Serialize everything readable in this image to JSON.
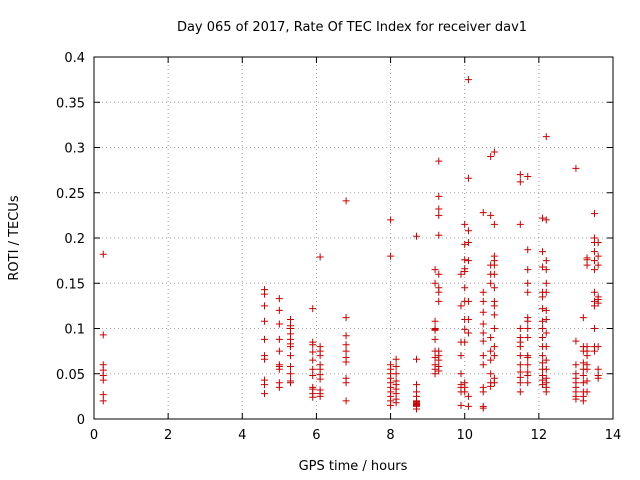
{
  "chart_data": {
    "type": "scatter",
    "title": "Day 065 of 2017, Rate Of TEC Index for receiver dav1",
    "xlabel": "GPS time / hours",
    "ylabel": "ROTI / TECUs",
    "xlim": [
      0,
      14
    ],
    "ylim": [
      0,
      0.4
    ],
    "xticks": [
      0,
      2,
      4,
      6,
      8,
      10,
      12,
      14
    ],
    "yticks": [
      0,
      0.05,
      0.1,
      0.15,
      0.2,
      0.25,
      0.3,
      0.35,
      0.4
    ],
    "xtick_labels": [
      "0",
      "2",
      "4",
      "6",
      "8",
      "10",
      "12",
      "14"
    ],
    "ytick_labels": [
      "0",
      "0.05",
      "0.1",
      "0.15",
      "0.2",
      "0.25",
      "0.3",
      "0.35",
      "0.4"
    ],
    "grid": true,
    "marker": "plus",
    "color": "#cc0000",
    "points": [
      [
        0.25,
        0.182
      ],
      [
        0.25,
        0.093
      ],
      [
        0.25,
        0.06
      ],
      [
        0.25,
        0.054
      ],
      [
        0.25,
        0.048
      ],
      [
        0.25,
        0.043
      ],
      [
        0.25,
        0.027
      ],
      [
        0.25,
        0.02
      ],
      [
        4.6,
        0.143
      ],
      [
        4.6,
        0.138
      ],
      [
        4.6,
        0.125
      ],
      [
        4.6,
        0.108
      ],
      [
        4.6,
        0.088
      ],
      [
        4.6,
        0.07
      ],
      [
        4.6,
        0.066
      ],
      [
        4.6,
        0.043
      ],
      [
        4.6,
        0.038
      ],
      [
        4.6,
        0.028
      ],
      [
        5.0,
        0.133
      ],
      [
        5.0,
        0.12
      ],
      [
        5.0,
        0.105
      ],
      [
        5.0,
        0.088
      ],
      [
        5.0,
        0.075
      ],
      [
        5.0,
        0.06
      ],
      [
        5.0,
        0.058
      ],
      [
        5.0,
        0.055
      ],
      [
        5.0,
        0.04
      ],
      [
        5.0,
        0.035
      ],
      [
        5.3,
        0.11
      ],
      [
        5.3,
        0.103
      ],
      [
        5.3,
        0.1
      ],
      [
        5.3,
        0.094
      ],
      [
        5.3,
        0.088
      ],
      [
        5.3,
        0.083
      ],
      [
        5.3,
        0.08
      ],
      [
        5.3,
        0.07
      ],
      [
        5.3,
        0.058
      ],
      [
        5.3,
        0.05
      ],
      [
        5.3,
        0.042
      ],
      [
        5.3,
        0.04
      ],
      [
        5.9,
        0.122
      ],
      [
        5.9,
        0.085
      ],
      [
        5.9,
        0.082
      ],
      [
        5.9,
        0.074
      ],
      [
        5.9,
        0.065
      ],
      [
        5.9,
        0.055
      ],
      [
        5.9,
        0.048
      ],
      [
        5.9,
        0.035
      ],
      [
        5.9,
        0.033
      ],
      [
        5.9,
        0.028
      ],
      [
        5.9,
        0.024
      ],
      [
        6.1,
        0.179
      ],
      [
        6.1,
        0.08
      ],
      [
        6.1,
        0.075
      ],
      [
        6.1,
        0.07
      ],
      [
        6.1,
        0.06
      ],
      [
        6.1,
        0.055
      ],
      [
        6.1,
        0.049
      ],
      [
        6.1,
        0.044
      ],
      [
        6.1,
        0.032
      ],
      [
        6.1,
        0.028
      ],
      [
        6.1,
        0.025
      ],
      [
        6.8,
        0.241
      ],
      [
        6.8,
        0.112
      ],
      [
        6.8,
        0.092
      ],
      [
        6.8,
        0.082
      ],
      [
        6.8,
        0.075
      ],
      [
        6.8,
        0.068
      ],
      [
        6.8,
        0.063
      ],
      [
        6.8,
        0.045
      ],
      [
        6.8,
        0.04
      ],
      [
        6.8,
        0.02
      ],
      [
        8.0,
        0.22
      ],
      [
        8.0,
        0.18
      ],
      [
        8.0,
        0.06
      ],
      [
        8.0,
        0.055
      ],
      [
        8.0,
        0.05
      ],
      [
        8.0,
        0.045
      ],
      [
        8.0,
        0.04
      ],
      [
        8.0,
        0.035
      ],
      [
        8.0,
        0.03
      ],
      [
        8.0,
        0.025
      ],
      [
        8.0,
        0.02
      ],
      [
        8.0,
        0.015
      ],
      [
        8.15,
        0.066
      ],
      [
        8.15,
        0.058
      ],
      [
        8.15,
        0.05
      ],
      [
        8.15,
        0.042
      ],
      [
        8.15,
        0.038
      ],
      [
        8.15,
        0.033
      ],
      [
        8.15,
        0.028
      ],
      [
        8.15,
        0.022
      ],
      [
        8.15,
        0.018
      ],
      [
        8.7,
        0.202
      ],
      [
        8.7,
        0.066
      ],
      [
        8.7,
        0.038
      ],
      [
        8.7,
        0.03
      ],
      [
        8.7,
        0.025
      ],
      [
        8.7,
        0.02
      ],
      [
        8.7,
        0.019
      ],
      [
        8.7,
        0.018
      ],
      [
        8.7,
        0.017
      ],
      [
        8.7,
        0.016
      ],
      [
        8.7,
        0.015
      ],
      [
        8.7,
        0.014
      ],
      [
        8.7,
        0.011
      ],
      [
        9.2,
        0.165
      ],
      [
        9.2,
        0.15
      ],
      [
        9.2,
        0.108
      ],
      [
        9.2,
        0.1
      ],
      [
        9.2,
        0.099
      ],
      [
        9.2,
        0.098
      ],
      [
        9.2,
        0.088
      ],
      [
        9.2,
        0.075
      ],
      [
        9.2,
        0.068
      ],
      [
        9.2,
        0.06
      ],
      [
        9.2,
        0.055
      ],
      [
        9.2,
        0.05
      ],
      [
        9.3,
        0.285
      ],
      [
        9.3,
        0.246
      ],
      [
        9.3,
        0.232
      ],
      [
        9.3,
        0.225
      ],
      [
        9.3,
        0.203
      ],
      [
        9.3,
        0.16
      ],
      [
        9.3,
        0.145
      ],
      [
        9.3,
        0.14
      ],
      [
        9.3,
        0.13
      ],
      [
        9.3,
        0.075
      ],
      [
        9.3,
        0.07
      ],
      [
        9.3,
        0.065
      ],
      [
        9.3,
        0.058
      ],
      [
        9.3,
        0.053
      ],
      [
        9.9,
        0.16
      ],
      [
        9.9,
        0.125
      ],
      [
        9.9,
        0.085
      ],
      [
        9.9,
        0.07
      ],
      [
        9.9,
        0.05
      ],
      [
        9.9,
        0.038
      ],
      [
        9.9,
        0.035
      ],
      [
        9.9,
        0.03
      ],
      [
        9.9,
        0.015
      ],
      [
        10.0,
        0.215
      ],
      [
        10.0,
        0.193
      ],
      [
        10.0,
        0.176
      ],
      [
        10.0,
        0.166
      ],
      [
        10.0,
        0.163
      ],
      [
        10.0,
        0.145
      ],
      [
        10.0,
        0.13
      ],
      [
        10.0,
        0.11
      ],
      [
        10.0,
        0.099
      ],
      [
        10.0,
        0.085
      ],
      [
        10.0,
        0.04
      ],
      [
        10.0,
        0.035
      ],
      [
        10.0,
        0.03
      ],
      [
        10.1,
        0.375
      ],
      [
        10.1,
        0.266
      ],
      [
        10.1,
        0.208
      ],
      [
        10.1,
        0.195
      ],
      [
        10.1,
        0.175
      ],
      [
        10.1,
        0.13
      ],
      [
        10.1,
        0.11
      ],
      [
        10.1,
        0.095
      ],
      [
        10.1,
        0.025
      ],
      [
        10.1,
        0.014
      ],
      [
        10.5,
        0.228
      ],
      [
        10.5,
        0.14
      ],
      [
        10.5,
        0.13
      ],
      [
        10.5,
        0.118
      ],
      [
        10.5,
        0.105
      ],
      [
        10.5,
        0.095
      ],
      [
        10.5,
        0.086
      ],
      [
        10.5,
        0.07
      ],
      [
        10.5,
        0.06
      ],
      [
        10.5,
        0.035
      ],
      [
        10.5,
        0.03
      ],
      [
        10.5,
        0.014
      ],
      [
        10.5,
        0.012
      ],
      [
        10.7,
        0.29
      ],
      [
        10.7,
        0.225
      ],
      [
        10.7,
        0.17
      ],
      [
        10.7,
        0.16
      ],
      [
        10.7,
        0.15
      ],
      [
        10.7,
        0.09
      ],
      [
        10.7,
        0.075
      ],
      [
        10.7,
        0.065
      ],
      [
        10.7,
        0.05
      ],
      [
        10.7,
        0.04
      ],
      [
        10.7,
        0.036
      ],
      [
        10.8,
        0.295
      ],
      [
        10.8,
        0.215
      ],
      [
        10.8,
        0.18
      ],
      [
        10.8,
        0.175
      ],
      [
        10.8,
        0.17
      ],
      [
        10.8,
        0.16
      ],
      [
        10.8,
        0.145
      ],
      [
        10.8,
        0.13
      ],
      [
        10.8,
        0.125
      ],
      [
        10.8,
        0.115
      ],
      [
        10.8,
        0.1
      ],
      [
        10.8,
        0.08
      ],
      [
        10.8,
        0.07
      ],
      [
        10.8,
        0.045
      ],
      [
        10.8,
        0.04
      ],
      [
        11.5,
        0.27
      ],
      [
        11.5,
        0.262
      ],
      [
        11.5,
        0.215
      ],
      [
        11.5,
        0.1
      ],
      [
        11.5,
        0.09
      ],
      [
        11.5,
        0.085
      ],
      [
        11.5,
        0.08
      ],
      [
        11.5,
        0.07
      ],
      [
        11.5,
        0.06
      ],
      [
        11.5,
        0.052
      ],
      [
        11.5,
        0.046
      ],
      [
        11.5,
        0.04
      ],
      [
        11.5,
        0.03
      ],
      [
        11.7,
        0.268
      ],
      [
        11.7,
        0.187
      ],
      [
        11.7,
        0.165
      ],
      [
        11.7,
        0.15
      ],
      [
        11.7,
        0.14
      ],
      [
        11.7,
        0.112
      ],
      [
        11.7,
        0.108
      ],
      [
        11.7,
        0.1
      ],
      [
        11.7,
        0.09
      ],
      [
        11.7,
        0.07
      ],
      [
        11.7,
        0.068
      ],
      [
        11.7,
        0.06
      ],
      [
        11.7,
        0.052
      ],
      [
        11.7,
        0.048
      ],
      [
        11.7,
        0.04
      ],
      [
        12.1,
        0.222
      ],
      [
        12.1,
        0.185
      ],
      [
        12.1,
        0.168
      ],
      [
        12.1,
        0.14
      ],
      [
        12.1,
        0.135
      ],
      [
        12.1,
        0.122
      ],
      [
        12.1,
        0.108
      ],
      [
        12.1,
        0.1
      ],
      [
        12.1,
        0.09
      ],
      [
        12.1,
        0.08
      ],
      [
        12.1,
        0.07
      ],
      [
        12.1,
        0.062
      ],
      [
        12.1,
        0.055
      ],
      [
        12.1,
        0.048
      ],
      [
        12.1,
        0.043
      ],
      [
        12.1,
        0.038
      ],
      [
        12.2,
        0.312
      ],
      [
        12.2,
        0.22
      ],
      [
        12.2,
        0.175
      ],
      [
        12.2,
        0.165
      ],
      [
        12.2,
        0.15
      ],
      [
        12.2,
        0.14
      ],
      [
        12.2,
        0.12
      ],
      [
        12.2,
        0.11
      ],
      [
        12.2,
        0.095
      ],
      [
        12.2,
        0.08
      ],
      [
        12.2,
        0.065
      ],
      [
        12.2,
        0.055
      ],
      [
        12.2,
        0.045
      ],
      [
        12.2,
        0.04
      ],
      [
        12.2,
        0.035
      ],
      [
        12.2,
        0.03
      ],
      [
        13.0,
        0.277
      ],
      [
        13.0,
        0.086
      ],
      [
        13.0,
        0.06
      ],
      [
        13.0,
        0.05
      ],
      [
        13.0,
        0.045
      ],
      [
        13.0,
        0.04
      ],
      [
        13.0,
        0.035
      ],
      [
        13.0,
        0.03
      ],
      [
        13.0,
        0.025
      ],
      [
        13.0,
        0.022
      ],
      [
        13.2,
        0.112
      ],
      [
        13.2,
        0.08
      ],
      [
        13.2,
        0.075
      ],
      [
        13.2,
        0.062
      ],
      [
        13.2,
        0.055
      ],
      [
        13.2,
        0.048
      ],
      [
        13.2,
        0.04
      ],
      [
        13.2,
        0.03
      ],
      [
        13.2,
        0.025
      ],
      [
        13.2,
        0.02
      ],
      [
        13.3,
        0.178
      ],
      [
        13.3,
        0.176
      ],
      [
        13.3,
        0.17
      ],
      [
        13.3,
        0.08
      ],
      [
        13.3,
        0.075
      ],
      [
        13.3,
        0.07
      ],
      [
        13.3,
        0.06
      ],
      [
        13.3,
        0.055
      ],
      [
        13.3,
        0.042
      ],
      [
        13.3,
        0.03
      ],
      [
        13.5,
        0.227
      ],
      [
        13.5,
        0.2
      ],
      [
        13.5,
        0.195
      ],
      [
        13.5,
        0.185
      ],
      [
        13.5,
        0.175
      ],
      [
        13.5,
        0.165
      ],
      [
        13.5,
        0.14
      ],
      [
        13.5,
        0.13
      ],
      [
        13.5,
        0.125
      ],
      [
        13.5,
        0.1
      ],
      [
        13.5,
        0.08
      ],
      [
        13.5,
        0.075
      ],
      [
        13.6,
        0.195
      ],
      [
        13.6,
        0.18
      ],
      [
        13.6,
        0.17
      ],
      [
        13.6,
        0.135
      ],
      [
        13.6,
        0.132
      ],
      [
        13.6,
        0.128
      ],
      [
        13.6,
        0.08
      ],
      [
        13.6,
        0.055
      ],
      [
        13.6,
        0.048
      ],
      [
        13.6,
        0.045
      ]
    ]
  }
}
